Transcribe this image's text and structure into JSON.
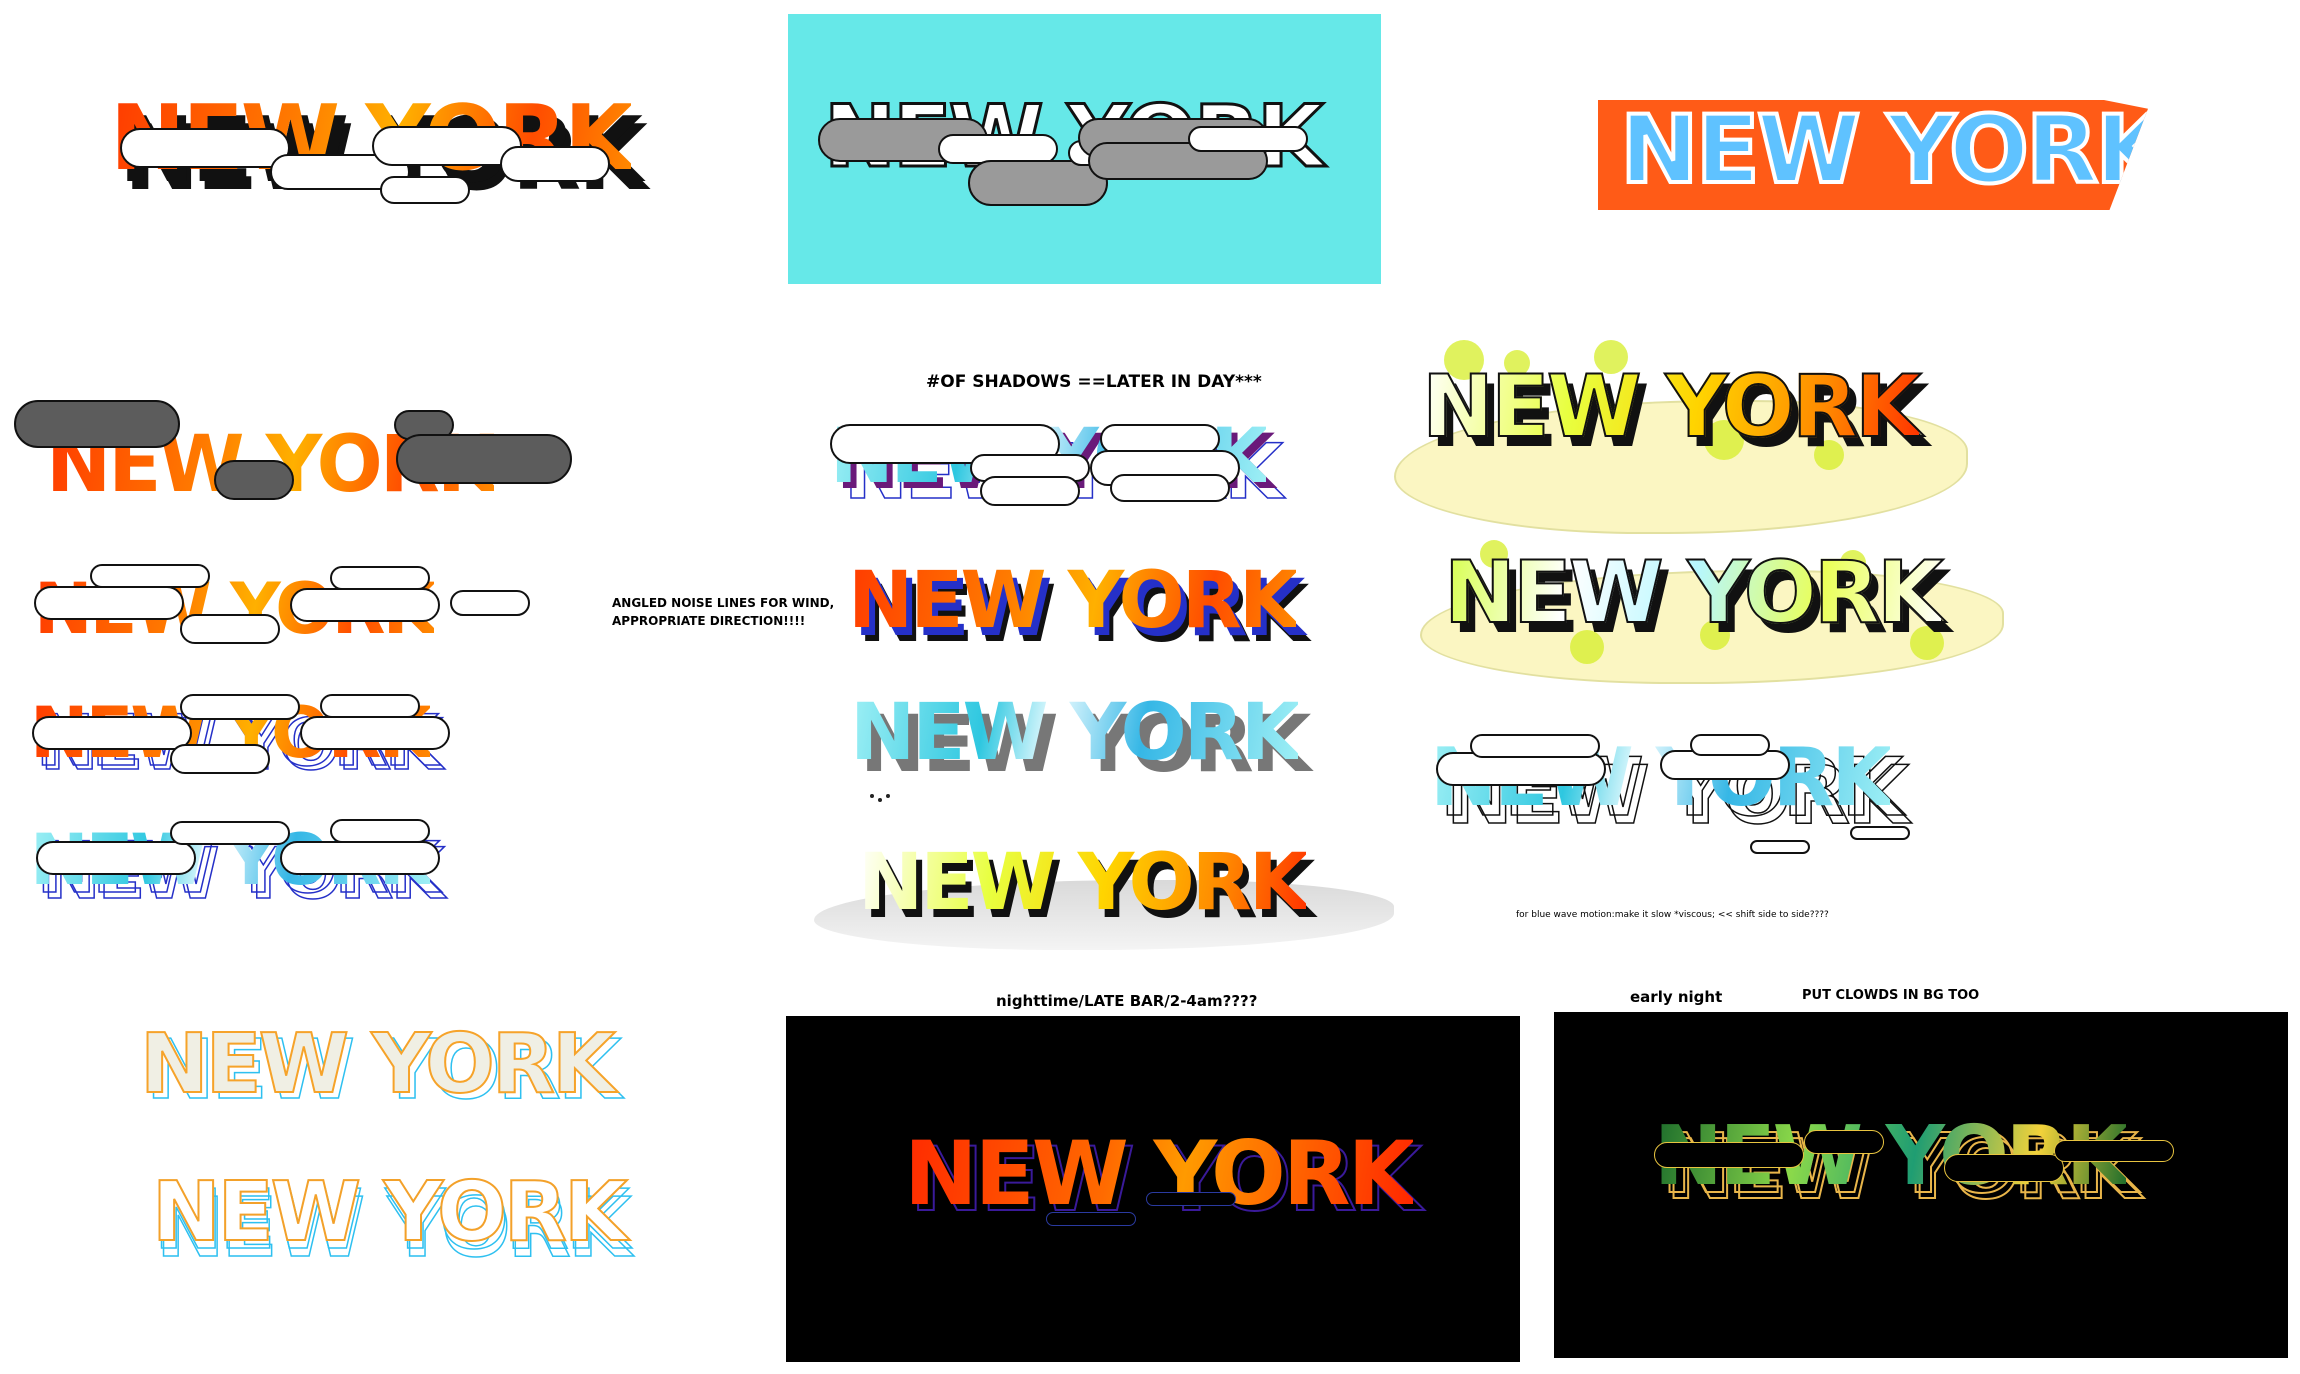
{
  "words": {
    "title": "NEW YORK"
  },
  "notes": {
    "shadows": "#OF SHADOWS ==LATER IN DAY***",
    "noise_line1": "ANGLED NOISE LINES FOR WIND,",
    "noise_line2": "APPROPRIATE DIRECTION!!!!",
    "blue_wave": "for blue wave motion:make it slow *viscous; << shift side to side????",
    "nighttime": "nighttime/LATE BAR/2-4am????",
    "early_night": "early night",
    "clouds": "PUT CLOWDS IN BG TOO"
  },
  "colors": {
    "cyan_panel": "#66e8e8",
    "black_panel": "#000000",
    "orange": "#ff5b17",
    "sky_blue": "#5fc2ff",
    "lime": "#d6ee28"
  }
}
